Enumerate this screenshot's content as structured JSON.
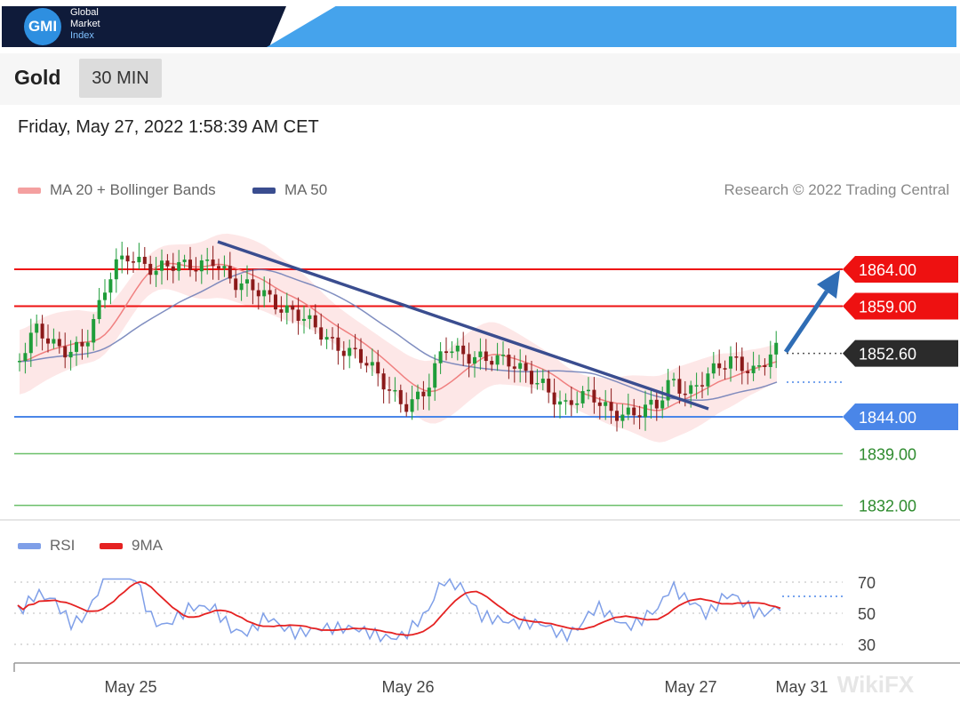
{
  "brand": {
    "logo_text": "GMI",
    "line1": "Global",
    "line2": "Market",
    "line3": "Index"
  },
  "instrument": "Gold",
  "timeframe": "30 MIN",
  "timestamp": "Friday, May 27, 2022 1:58:39 AM CET",
  "legend": {
    "ma20_label": "MA 20 + Bollinger Bands",
    "ma50_label": "MA 50",
    "credit": "Research © 2022 Trading Central"
  },
  "rsi_legend": {
    "rsi_label": "RSI",
    "ma_label": "9MA"
  },
  "watermark": "WikiFX",
  "colors": {
    "resistance": "#ee1111",
    "support": "#4a86e8",
    "target": "#6abf69",
    "ma50": "#3a4d8f",
    "ma20": "#f08080",
    "band": "#fde3e3",
    "bull": "#1f9d3a",
    "bear": "#8b1a1a",
    "rsi": "#7f9fe8",
    "rsi_ma": "#e52222",
    "arrow": "#2f6db5"
  },
  "chart_data": [
    {
      "type": "candlestick",
      "title": "Gold",
      "x_tick_labels": [
        "May 25",
        "May 26",
        "May 27",
        "May 31"
      ],
      "y_axis_range": [
        1826,
        1870
      ],
      "levels": [
        {
          "value": 1864.0,
          "label": "1864.00",
          "kind": "resistance"
        },
        {
          "value": 1859.0,
          "label": "1859.00",
          "kind": "resistance"
        },
        {
          "value": 1852.6,
          "label": "1852.60",
          "kind": "last_price"
        },
        {
          "value": 1844.0,
          "label": "1844.00",
          "kind": "support"
        },
        {
          "value": 1839.0,
          "label": "1839.00",
          "kind": "target"
        },
        {
          "value": 1832.0,
          "label": "1832.00",
          "kind": "target"
        }
      ],
      "series": [
        {
          "name": "MA 20 + Bollinger Bands"
        },
        {
          "name": "MA 50"
        }
      ],
      "grid": false,
      "legend_position": "top-left"
    },
    {
      "type": "line",
      "series": [
        {
          "name": "RSI"
        },
        {
          "name": "9MA"
        }
      ],
      "y_tick_labels": [
        "70",
        "50",
        "30"
      ],
      "ylim": [
        22,
        78
      ],
      "grid": true,
      "legend_position": "top-left"
    }
  ]
}
